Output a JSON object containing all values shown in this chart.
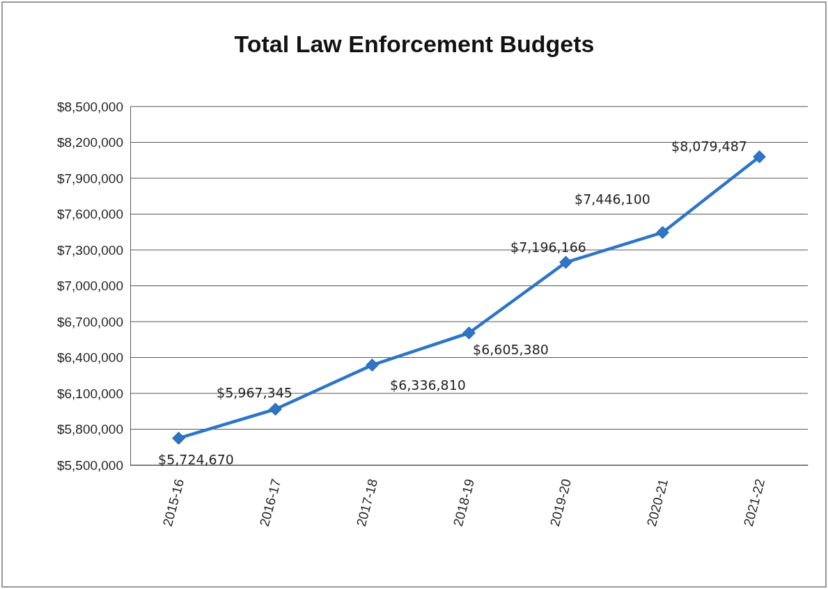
{
  "chart_data": {
    "type": "line",
    "title": "Total Law Enforcement Budgets",
    "categories": [
      "2015-16",
      "2016-17",
      "2017-18",
      "2018-19",
      "2019-20",
      "2020-21",
      "2021-22"
    ],
    "series": [
      {
        "color": "#2e75c6",
        "values": [
          5724670,
          5967345,
          6336810,
          6605380,
          7196166,
          7446100,
          8079487
        ],
        "value_labels": [
          "$5,724,670",
          "$5,967,345",
          "$6,336,810",
          "$6,605,380",
          "$7,196,166",
          "$7,446,100",
          "$8,079,487"
        ]
      }
    ],
    "ylim": [
      5500000,
      8500000
    ],
    "yticks": [
      {
        "value": 5500000,
        "label": "$5,500,000"
      },
      {
        "value": 5800000,
        "label": "$5,800,000"
      },
      {
        "value": 6100000,
        "label": "$6,100,000"
      },
      {
        "value": 6400000,
        "label": "$6,400,000"
      },
      {
        "value": 6700000,
        "label": "$6,700,000"
      },
      {
        "value": 7000000,
        "label": "$7,000,000"
      },
      {
        "value": 7300000,
        "label": "$7,300,000"
      },
      {
        "value": 7600000,
        "label": "$7,600,000"
      },
      {
        "value": 7900000,
        "label": "$7,900,000"
      },
      {
        "value": 8200000,
        "label": "$8,200,000"
      },
      {
        "value": 8500000,
        "label": "$8,500,000"
      }
    ],
    "grid": "y",
    "marker": "diamond",
    "line_style": "solid"
  }
}
